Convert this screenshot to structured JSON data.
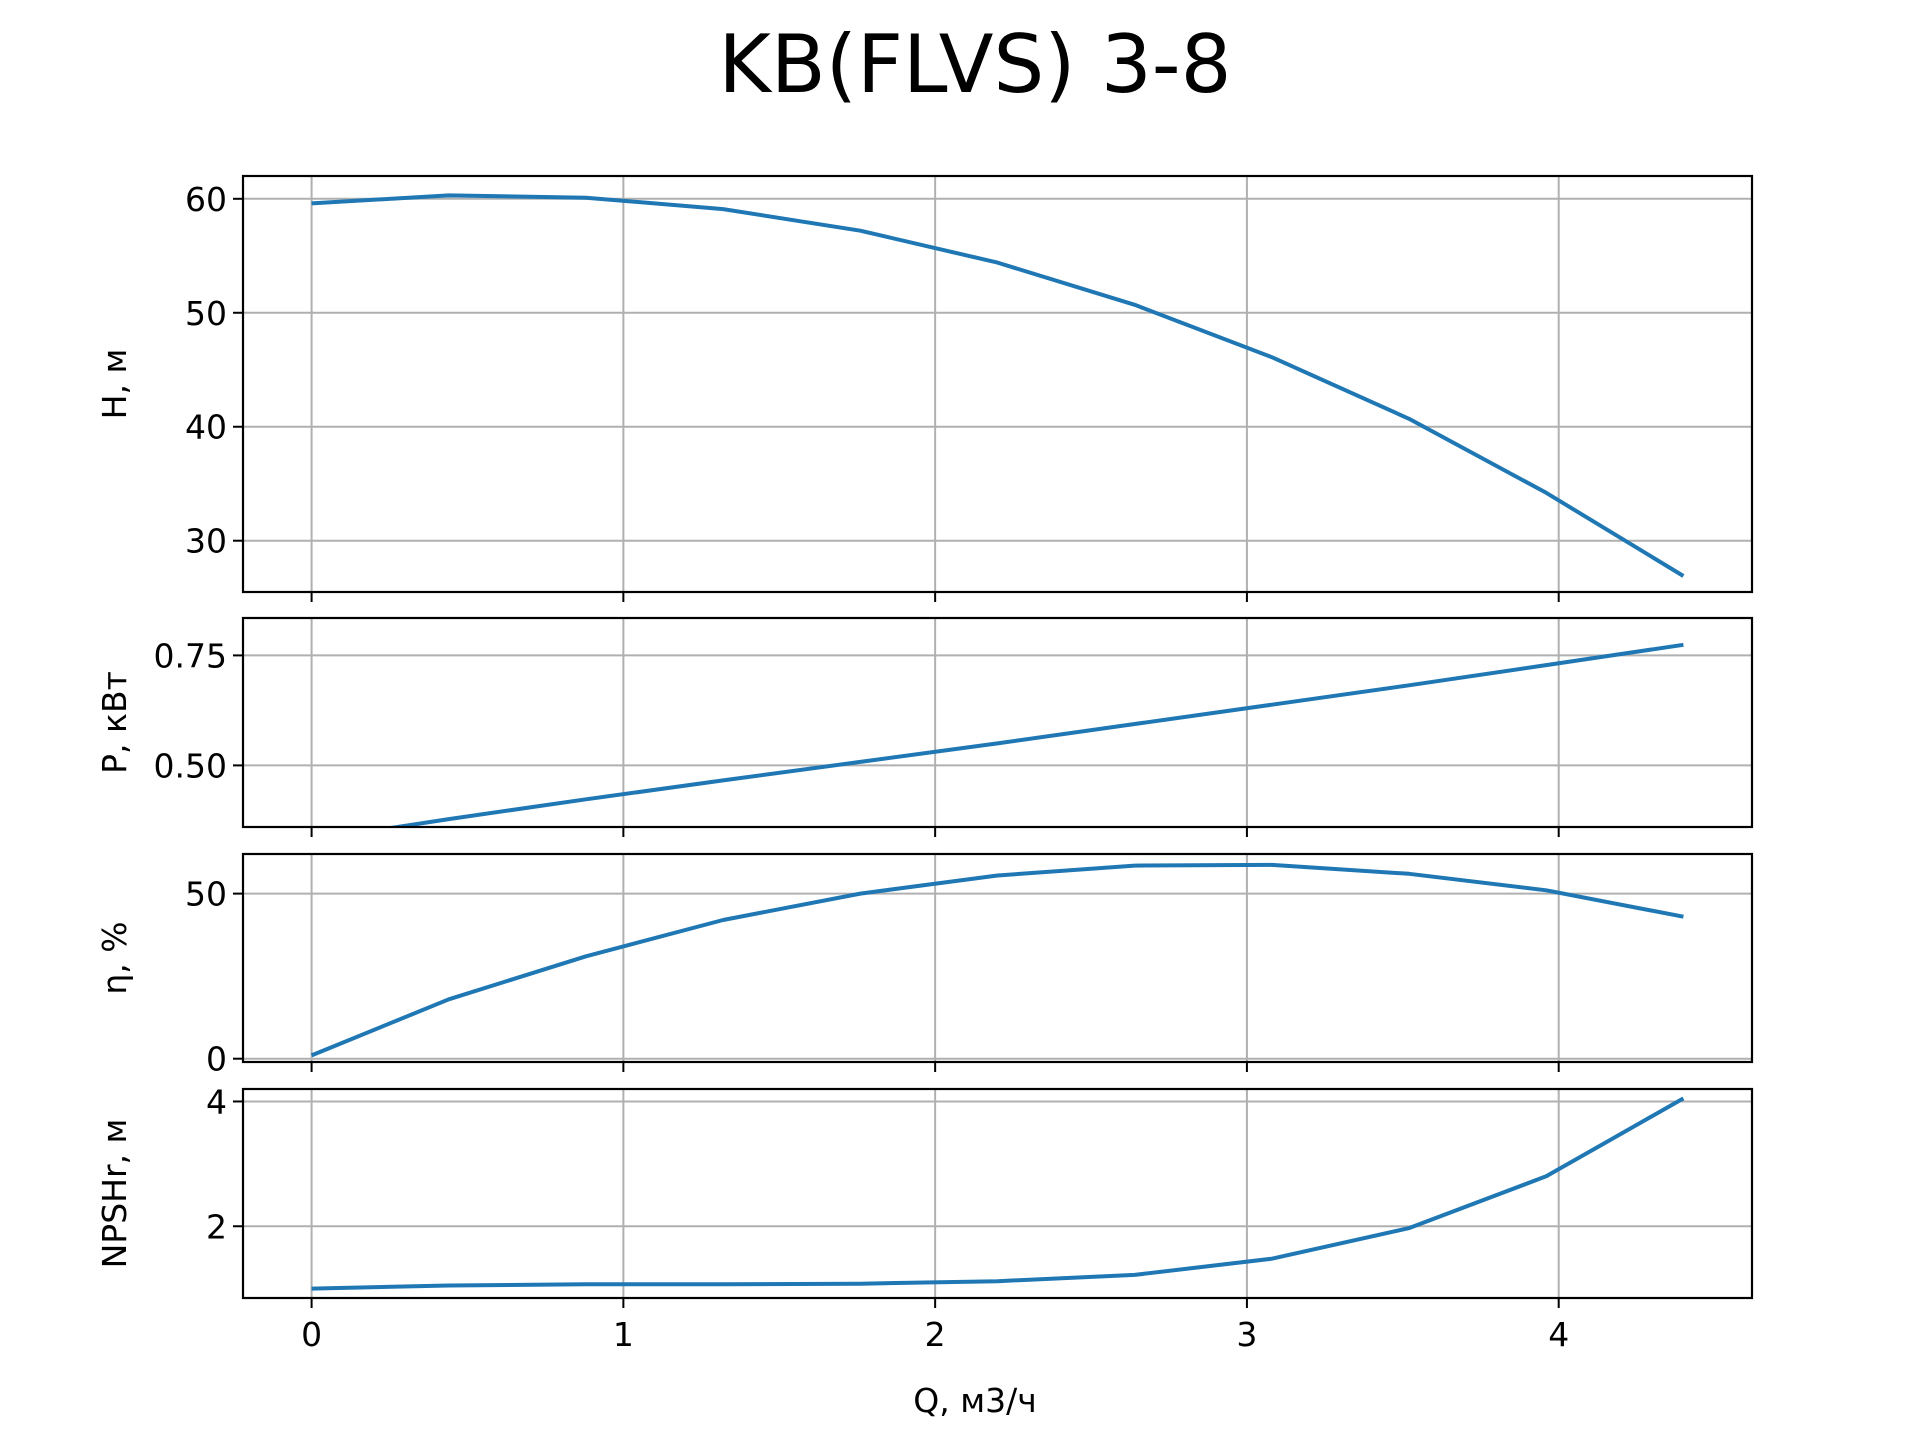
{
  "chart_data": {
    "type": "line",
    "title": "KB(FLVS) 3-8",
    "xlabel": "Q, м3/ч",
    "x_ticks": [
      0,
      1,
      2,
      3,
      4
    ],
    "xlim": [
      -0.22,
      4.62
    ],
    "series_color": "#1f77b4",
    "panels": [
      {
        "id": "head",
        "ylabel": "H, м",
        "ylim": [
          25.5,
          62
        ],
        "y_ticks": [
          30,
          40,
          50,
          60
        ],
        "y_tick_labels": [
          "30",
          "40",
          "50",
          "60"
        ],
        "x": [
          0,
          0.44,
          0.88,
          1.32,
          1.76,
          2.2,
          2.64,
          3.08,
          3.52,
          3.96,
          4.4
        ],
        "y": [
          59.6,
          60.3,
          60.1,
          59.1,
          57.2,
          54.4,
          50.7,
          46.1,
          40.7,
          34.2,
          26.9
        ]
      },
      {
        "id": "power",
        "ylabel": "P, кВт",
        "ylim": [
          0.36,
          0.835
        ],
        "y_ticks": [
          0.5,
          0.75
        ],
        "y_tick_labels": [
          "0.50",
          "0.75"
        ],
        "x": [
          0,
          0.44,
          0.88,
          1.32,
          1.76,
          2.2,
          2.64,
          3.08,
          3.52,
          3.96,
          4.4
        ],
        "y": [
          0.33,
          0.378,
          0.423,
          0.466,
          0.508,
          0.55,
          0.594,
          0.638,
          0.682,
          0.728,
          0.774
        ]
      },
      {
        "id": "efficiency",
        "ylabel": "η, %",
        "ylim": [
          -1,
          62
        ],
        "y_ticks": [
          0,
          50
        ],
        "y_tick_labels": [
          "0",
          "50"
        ],
        "x": [
          0,
          0.44,
          0.88,
          1.32,
          1.76,
          2.2,
          2.64,
          3.08,
          3.52,
          3.96,
          4.4
        ],
        "y": [
          1,
          18,
          31,
          42,
          50,
          55.5,
          58.5,
          58.7,
          56,
          51,
          43
        ]
      },
      {
        "id": "npsh",
        "ylabel": "NPSHr, м",
        "ylim": [
          0.85,
          4.2
        ],
        "y_ticks": [
          2,
          4
        ],
        "y_tick_labels": [
          "2",
          "4"
        ],
        "x": [
          0,
          0.44,
          0.88,
          1.32,
          1.76,
          2.2,
          2.64,
          3.08,
          3.52,
          3.96,
          4.4
        ],
        "y": [
          1.0,
          1.05,
          1.07,
          1.07,
          1.08,
          1.12,
          1.22,
          1.48,
          1.97,
          2.8,
          4.05
        ]
      }
    ],
    "grid": true,
    "legend": "none"
  }
}
